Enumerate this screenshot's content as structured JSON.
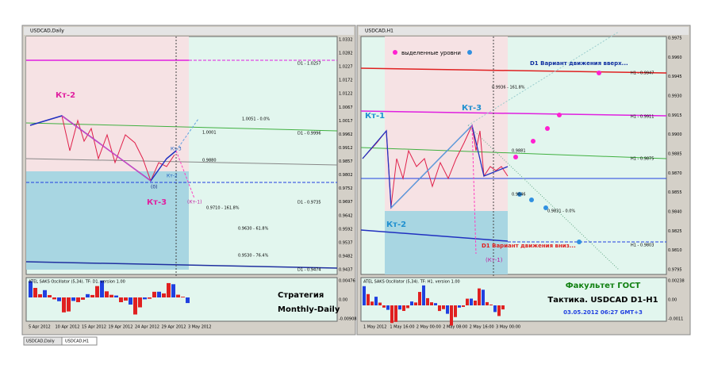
{
  "left": {
    "title": "USDCAD,Daily",
    "price_axis": [
      "1.0332",
      "1.0282",
      "1.0227",
      "1.0172",
      "1.0122",
      "1.0067",
      "1.0017",
      "0.9962",
      "0.9912",
      "0.9857",
      "0.9802",
      "0.9752",
      "0.9697",
      "0.9642",
      "0.9592",
      "0.9537",
      "0.9482",
      "0.9437"
    ],
    "osc_axis": [
      "0.00476",
      "0.00",
      "-0.00908"
    ],
    "dates": [
      "5 Apr 2012",
      "10 Apr 2012",
      "15 Apr 2012",
      "19 Apr 2012",
      "24 Apr 2012",
      "29 Apr 2012",
      "3 May 2012"
    ],
    "labels": {
      "kt2": "Кт-2",
      "kt3": "Кт-3",
      "kt2s": "Кт-2",
      "kt3s": "Кт-3",
      "zero": "(0)",
      "kt1": "(Кт-1)",
      "d1a": "D1 - 1.0257",
      "f0": "1.0051 - 0.0%",
      "d1b": "D1 - 0.9996",
      "l9880": "0.9880",
      "f161": "0.9710 - 161.8%",
      "d1c": "D1 - 0.9735",
      "f618": "0.9630 - 61.8%",
      "f764": "0.9530 - 76.4%",
      "d1d": "D1 - 0.9474",
      "l0001": "1.0001",
      "osc": "ATEL SAKS Oscillator (5,34). TF: D1. version 1.00",
      "strat1": "Стратегия",
      "strat2": "Monthly-Daily"
    }
  },
  "right": {
    "title": "USDCAD,H1",
    "price_axis": [
      "0.9975",
      "0.9960",
      "0.9945",
      "0.9930",
      "0.9915",
      "0.9900",
      "0.9885",
      "0.9870",
      "0.9855",
      "0.9840",
      "0.9825",
      "0.9810",
      "0.9795"
    ],
    "osc_axis": [
      "0.00238",
      "0.00",
      "-0.0011"
    ],
    "dates": [
      "1 May 2012",
      "1 May 16:00",
      "2 May 00:00",
      "2 May 08:00",
      "2 May 16:00",
      "3 May 00:00"
    ],
    "labels": {
      "levels": "выделенные уровни",
      "up": "D1 Вариант движения вверх...",
      "h1a": "H1 - 0.9947",
      "f161": "0.9936 - 161.8%",
      "kt3": "Кт-3",
      "kt1": "Кт-1",
      "h1b": "H1 - 0.9911",
      "h1c": "H1 - 0.9875",
      "l9881": "0.9881",
      "kt2": "Кт-2",
      "l9846": "0.9846",
      "f0": "0.9831 - 0.0%",
      "h1d": "H1 - 0.9803",
      "down": "D1 Вариант движения вниз...",
      "kt1b": "(Кт-1)",
      "osc": "ATEL SAKS Oscillator (5,34). TF: H1. version 1.00",
      "fac": "Факультет ГОСТ",
      "tac": "Тактика. USDCAD D1-H1",
      "date": "03.05.2012 06:27 GMT+3"
    }
  },
  "tabs": [
    "USDCAD,Daily",
    "USDCAD,H1"
  ]
}
